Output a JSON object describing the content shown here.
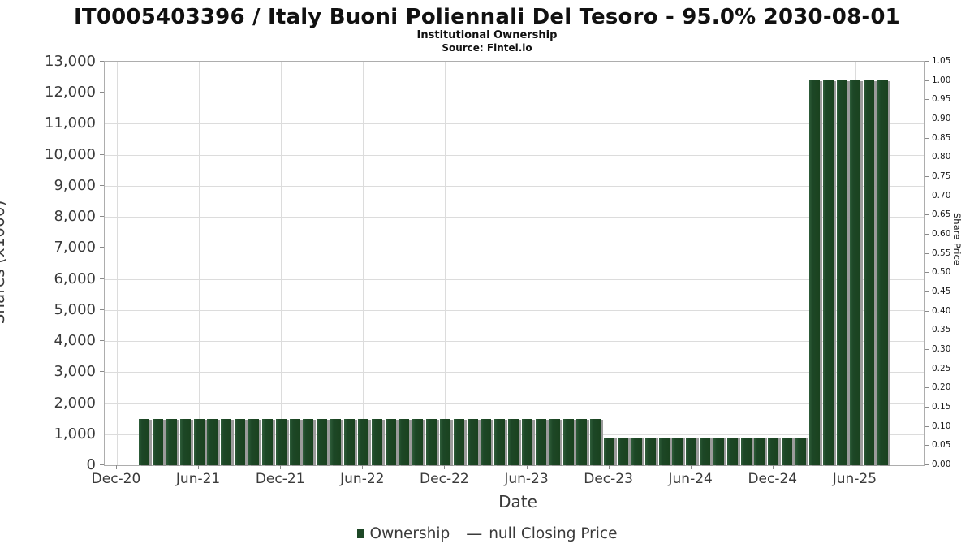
{
  "title": "IT0005403396 / Italy Buoni Poliennali Del Tesoro - 95.0% 2030-08-01",
  "subtitle": "Institutional Ownership",
  "source": "Source: Fintel.io",
  "legend": {
    "ownership_label": "Ownership",
    "ownership_color": "#1d4726",
    "price_label": "null Closing Price",
    "price_dash": "—"
  },
  "chart_data": {
    "type": "bar",
    "title": "IT0005403396 / Italy Buoni Poliennali Del Tesoro - 95.0% 2030-08-01",
    "xlabel": "Date",
    "ylabel": "Shares (x1000)",
    "y2label": "Share Price",
    "ylim": [
      0,
      13000
    ],
    "y2lim": [
      0.0,
      1.05
    ],
    "grid": true,
    "legend_position": "bottom",
    "bar_color": "#1d4726",
    "categories": [
      "Feb-21",
      "Mar-21",
      "Apr-21",
      "May-21",
      "Jun-21",
      "Jul-21",
      "Aug-21",
      "Sep-21",
      "Oct-21",
      "Nov-21",
      "Dec-21",
      "Jan-22",
      "Feb-22",
      "Mar-22",
      "Apr-22",
      "May-22",
      "Jun-22",
      "Jul-22",
      "Aug-22",
      "Sep-22",
      "Oct-22",
      "Nov-22",
      "Dec-22",
      "Jan-23",
      "Feb-23",
      "Mar-23",
      "Apr-23",
      "May-23",
      "Jun-23",
      "Jul-23",
      "Aug-23",
      "Sep-23",
      "Oct-23",
      "Nov-23",
      "Dec-23",
      "Jan-24",
      "Feb-24",
      "Mar-24",
      "Apr-24",
      "May-24",
      "Jun-24",
      "Jul-24",
      "Aug-24",
      "Sep-24",
      "Oct-24",
      "Nov-24",
      "Dec-24",
      "Jan-25",
      "Feb-25",
      "Mar-25",
      "Apr-25",
      "May-25",
      "Jun-25",
      "Jul-25",
      "Aug-25"
    ],
    "values": [
      1500,
      1500,
      1500,
      1500,
      1500,
      1500,
      1500,
      1500,
      1500,
      1500,
      1500,
      1500,
      1500,
      1500,
      1500,
      1500,
      1500,
      1500,
      1500,
      1500,
      1500,
      1500,
      1500,
      1500,
      1500,
      1500,
      1500,
      1500,
      1500,
      1500,
      1500,
      1500,
      1500,
      1500,
      900,
      900,
      900,
      900,
      900,
      900,
      900,
      900,
      900,
      900,
      900,
      900,
      900,
      900,
      900,
      12400,
      12400,
      12400,
      12400,
      12400,
      12400
    ],
    "x_ticks": [
      "Dec-20",
      "Jun-21",
      "Dec-21",
      "Jun-22",
      "Dec-22",
      "Jun-23",
      "Dec-23",
      "Jun-24",
      "Dec-24",
      "Jun-25"
    ],
    "y_ticks": [
      "13,000",
      "12,000",
      "11,000",
      "10,000",
      "9,000",
      "8,000",
      "7,000",
      "6,000",
      "5,000",
      "4,000",
      "3,000",
      "2,000",
      "1,000",
      "0"
    ],
    "y2_ticks": [
      "1.05",
      "1.00",
      "0.95",
      "0.90",
      "0.85",
      "0.80",
      "0.75",
      "0.70",
      "0.65",
      "0.60",
      "0.55",
      "0.50",
      "0.45",
      "0.40",
      "0.35",
      "0.30",
      "0.25",
      "0.20",
      "0.15",
      "0.10",
      "0.05",
      "0.00"
    ]
  }
}
